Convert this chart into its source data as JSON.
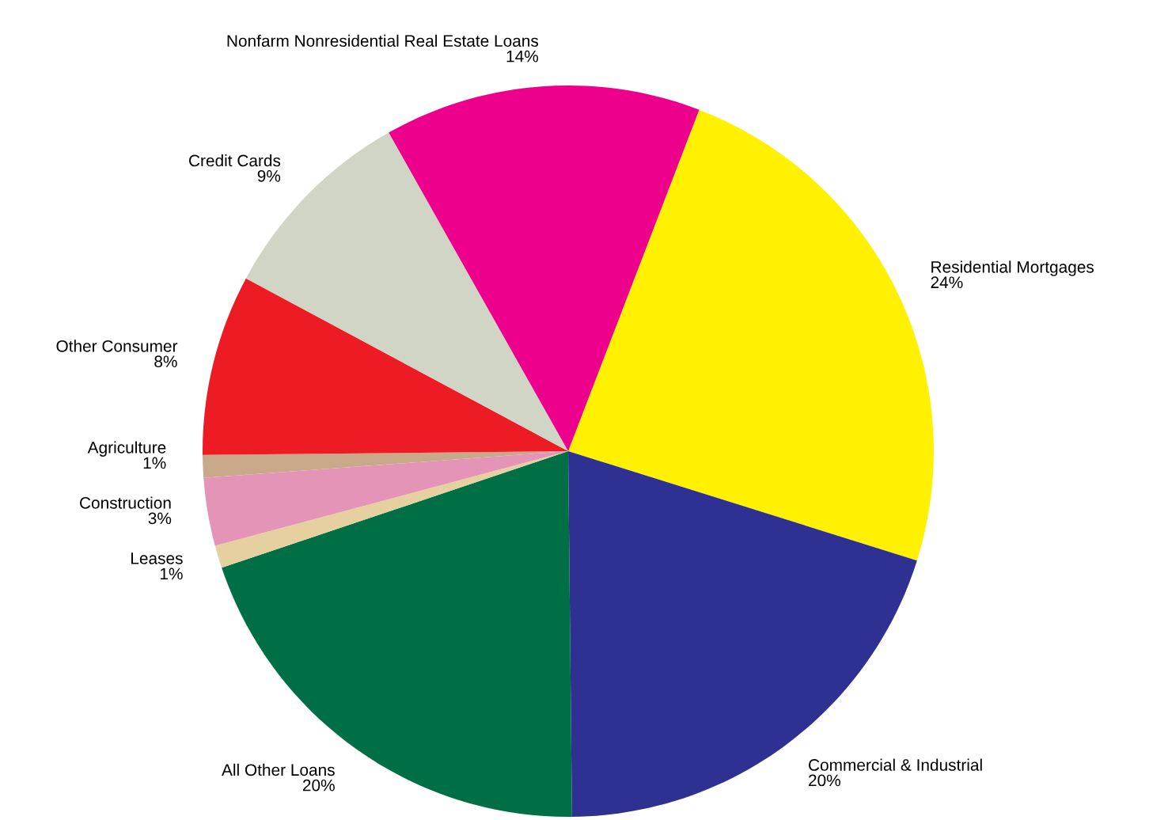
{
  "chart_data": {
    "type": "pie",
    "categories": [
      "Residential Mortgages",
      "Commercial & Industrial",
      "All Other Loans",
      "Leases",
      "Construction",
      "Agriculture",
      "Other Consumer",
      "Credit Cards",
      "Nonfarm Nonresidential Real Estate Loans"
    ],
    "values": [
      24,
      20,
      20,
      1,
      3,
      1,
      8,
      9,
      14
    ],
    "value_labels": [
      "24%",
      "20%",
      "20%",
      "1%",
      "3%",
      "1%",
      "8%",
      "9%",
      "14%"
    ],
    "colors": [
      "#fff100",
      "#2e3192",
      "#006f45",
      "#e6d09f",
      "#e495b7",
      "#c9a98a",
      "#ed1c24",
      "#d1d5c5",
      "#ec008c"
    ]
  }
}
